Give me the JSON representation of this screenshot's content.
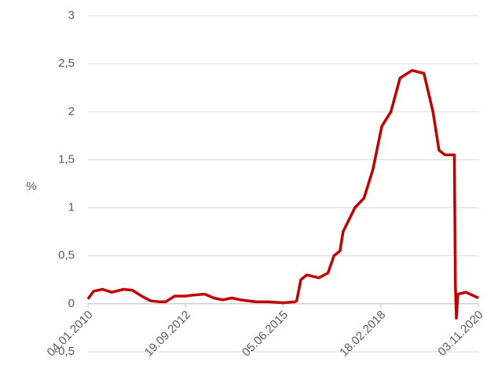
{
  "chart_data": {
    "type": "line",
    "y_label": "%",
    "x": [
      "2010-01-04",
      "2010-03-01",
      "2010-06-01",
      "2010-09-01",
      "2011-01-01",
      "2011-04-01",
      "2011-07-01",
      "2011-10-01",
      "2012-01-01",
      "2012-03-01",
      "2012-06-01",
      "2012-09-19",
      "2012-12-01",
      "2013-04-01",
      "2013-07-01",
      "2013-10-01",
      "2014-01-01",
      "2014-04-01",
      "2014-09-01",
      "2015-01-01",
      "2015-06-05",
      "2015-10-01",
      "2015-10-20",
      "2015-12-01",
      "2016-02-01",
      "2016-06-01",
      "2016-09-01",
      "2016-11-01",
      "2017-01-01",
      "2017-02-01",
      "2017-06-01",
      "2017-09-01",
      "2017-12-01",
      "2018-03-01",
      "2018-06-01",
      "2018-09-01",
      "2019-01-01",
      "2019-05-01",
      "2019-08-01",
      "2019-10-01",
      "2019-12-01",
      "2020-03-05",
      "2020-03-15",
      "2020-03-25",
      "2020-04-10",
      "2020-07-01",
      "2020-11-03"
    ],
    "series": [
      {
        "name": "%",
        "color": "#c00000",
        "values": [
          0.05,
          0.13,
          0.15,
          0.12,
          0.15,
          0.14,
          0.08,
          0.03,
          0.02,
          0.02,
          0.08,
          0.08,
          0.09,
          0.1,
          0.06,
          0.04,
          0.06,
          0.04,
          0.02,
          0.02,
          0.01,
          0.02,
          0.03,
          0.25,
          0.3,
          0.27,
          0.32,
          0.5,
          0.55,
          0.75,
          1.0,
          1.1,
          1.4,
          1.85,
          2.0,
          2.35,
          2.43,
          2.4,
          2.0,
          1.6,
          1.55,
          1.55,
          0.2,
          -0.15,
          0.1,
          0.12,
          0.06
        ]
      }
    ],
    "xlim": [
      "2010-01-04",
      "2020-11-03"
    ],
    "xticks": [
      {
        "value": "2010-01-04",
        "label": "04.01.2010"
      },
      {
        "value": "2012-09-19",
        "label": "19.09.2012"
      },
      {
        "value": "2015-06-05",
        "label": "05.06.2015"
      },
      {
        "value": "2018-02-18",
        "label": "18.02.2018"
      },
      {
        "value": "2020-11-03",
        "label": "03.11.2020"
      }
    ],
    "ylim": [
      -0.5,
      3
    ],
    "yticks": [
      {
        "value": -0.5,
        "label": "-0,5"
      },
      0,
      {
        "value": 0.5,
        "label": "0,5"
      },
      1,
      {
        "value": 1.5,
        "label": "1,5"
      },
      2,
      {
        "value": 2.5,
        "label": "2,5"
      },
      3
    ],
    "grid": true
  }
}
